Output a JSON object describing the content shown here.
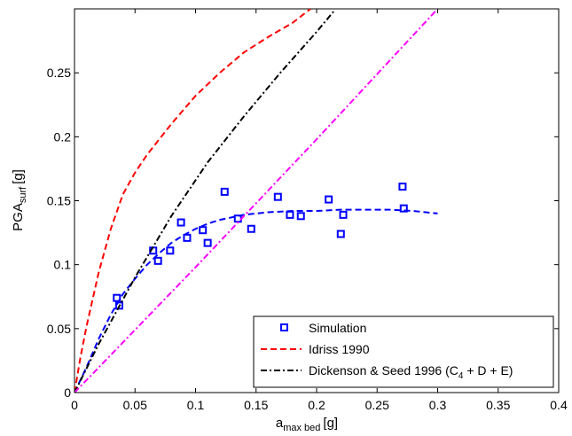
{
  "chart_data": {
    "type": "line",
    "title": "",
    "xlabel": {
      "main": "a",
      "sub": "max bed",
      "unit": "[g]"
    },
    "ylabel": {
      "main": "PGA",
      "sub": "surf",
      "unit": "[g]"
    },
    "xlim": [
      0,
      0.4
    ],
    "ylim": [
      0,
      0.3
    ],
    "xticks": [
      0,
      0.05,
      0.1,
      0.15,
      0.2,
      0.25,
      0.3,
      0.35,
      0.4
    ],
    "xtick_labels": [
      "0",
      "0.05",
      "0.1",
      "0.15",
      "0.2",
      "0.25",
      "0.3",
      "0.35",
      "0.4"
    ],
    "yticks": [
      0,
      0.05,
      0.1,
      0.15,
      0.2,
      0.25
    ],
    "ytick_labels": [
      "0",
      "0.05",
      "0.1",
      "0.15",
      "0.2",
      "0.25"
    ],
    "grid": false,
    "legend_position": "bottom-right",
    "colors": {
      "simulation": "#0000ff",
      "idriss": "#ff0000",
      "dickenson": "#000000",
      "magenta": "#ff00ff"
    },
    "legend": [
      {
        "series": "simulation",
        "label": "Simulation",
        "style": "marker"
      },
      {
        "series": "idriss",
        "label": "Idriss 1990",
        "style": "dash"
      },
      {
        "series": "dickenson",
        "label": "Dickenson & Seed 1996 (C",
        "sub": "4",
        "label_tail": " + D + E)",
        "style": "dashdot"
      }
    ],
    "series": [
      {
        "name": "Simulation",
        "kind": "scatter",
        "marker": "square",
        "color": "#0000ff",
        "points": [
          [
            0.035,
            0.074
          ],
          [
            0.037,
            0.068
          ],
          [
            0.065,
            0.111
          ],
          [
            0.069,
            0.103
          ],
          [
            0.079,
            0.111
          ],
          [
            0.088,
            0.133
          ],
          [
            0.093,
            0.121
          ],
          [
            0.106,
            0.127
          ],
          [
            0.11,
            0.117
          ],
          [
            0.124,
            0.157
          ],
          [
            0.135,
            0.136
          ],
          [
            0.146,
            0.128
          ],
          [
            0.168,
            0.153
          ],
          [
            0.178,
            0.139
          ],
          [
            0.187,
            0.138
          ],
          [
            0.21,
            0.151
          ],
          [
            0.22,
            0.124
          ],
          [
            0.222,
            0.139
          ],
          [
            0.271,
            0.161
          ],
          [
            0.272,
            0.144
          ]
        ]
      },
      {
        "name": "Simulation fit",
        "kind": "line",
        "dash": "dash",
        "color": "#0000ff",
        "points": [
          [
            0.0,
            0.0
          ],
          [
            0.01,
            0.02
          ],
          [
            0.02,
            0.042
          ],
          [
            0.03,
            0.061
          ],
          [
            0.04,
            0.077
          ],
          [
            0.05,
            0.089
          ],
          [
            0.06,
            0.1
          ],
          [
            0.07,
            0.109
          ],
          [
            0.08,
            0.117
          ],
          [
            0.09,
            0.123
          ],
          [
            0.1,
            0.128
          ],
          [
            0.11,
            0.132
          ],
          [
            0.12,
            0.135
          ],
          [
            0.13,
            0.137
          ],
          [
            0.14,
            0.139
          ],
          [
            0.16,
            0.141
          ],
          [
            0.18,
            0.142
          ],
          [
            0.2,
            0.142
          ],
          [
            0.22,
            0.143
          ],
          [
            0.24,
            0.143
          ],
          [
            0.26,
            0.143
          ],
          [
            0.28,
            0.142
          ],
          [
            0.3,
            0.14
          ]
        ]
      },
      {
        "name": "Idriss 1990",
        "kind": "line",
        "dash": "dash",
        "color": "#ff0000",
        "points": [
          [
            0.0,
            0.0
          ],
          [
            0.005,
            0.028
          ],
          [
            0.01,
            0.052
          ],
          [
            0.02,
            0.094
          ],
          [
            0.03,
            0.128
          ],
          [
            0.04,
            0.155
          ],
          [
            0.05,
            0.172
          ],
          [
            0.06,
            0.186
          ],
          [
            0.07,
            0.198
          ],
          [
            0.08,
            0.21
          ],
          [
            0.09,
            0.221
          ],
          [
            0.1,
            0.232
          ],
          [
            0.12,
            0.25
          ],
          [
            0.14,
            0.266
          ],
          [
            0.16,
            0.278
          ],
          [
            0.18,
            0.289
          ],
          [
            0.195,
            0.3
          ]
        ]
      },
      {
        "name": "Dickenson & Seed 1996 (C4 + D + E)",
        "kind": "line",
        "dash": "dashdot",
        "color": "#000000",
        "points": [
          [
            0.0,
            0.0
          ],
          [
            0.02,
            0.038
          ],
          [
            0.05,
            0.09
          ],
          [
            0.08,
            0.138
          ],
          [
            0.11,
            0.18
          ],
          [
            0.14,
            0.216
          ],
          [
            0.17,
            0.25
          ],
          [
            0.2,
            0.282
          ],
          [
            0.215,
            0.299
          ]
        ]
      },
      {
        "name": "",
        "kind": "line",
        "dash": "dashdot",
        "color": "#ff00ff",
        "points": [
          [
            0.0,
            0.0
          ],
          [
            0.1,
            0.098
          ],
          [
            0.2,
            0.198
          ],
          [
            0.3,
            0.3
          ]
        ]
      }
    ]
  }
}
